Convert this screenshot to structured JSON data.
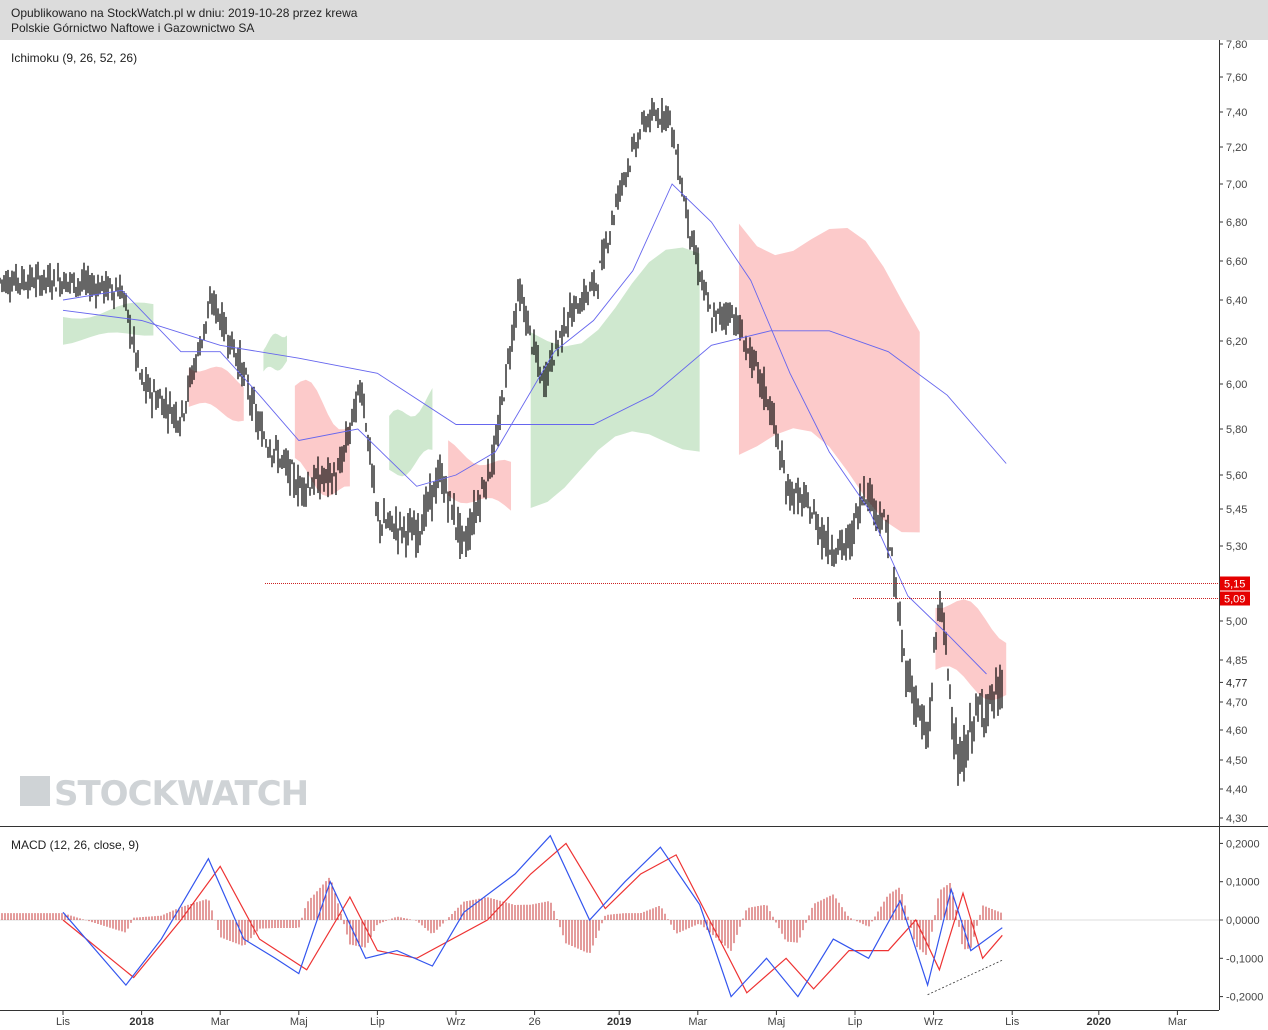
{
  "header": {
    "line1": "Opublikowano na StockWatch.pl w dniu: 2019-10-28 przez krewa",
    "line2": "Polskie Górnictwo Naftowe i Gazownictwo SA"
  },
  "watermark": "STOCKWATCH",
  "colors": {
    "candle": "#000000",
    "kumo_bull": "#cfe8cf",
    "kumo_bear": "#fccaca",
    "ma_line": "#6666ee",
    "macd_line": "#3355ee",
    "signal_line": "#ee3333",
    "histogram": "#c83a3a",
    "level_line": "#cc2222",
    "level_label_bg": "#e50000"
  },
  "chart_data": [
    {
      "type": "candlestick",
      "indicator_label": "Ichimoku (9, 26, 52, 26)",
      "y_ticks": [
        "7,80",
        "7,60",
        "7,40",
        "7,20",
        "7,00",
        "6,80",
        "6,60",
        "6,40",
        "6,20",
        "6,00",
        "5,80",
        "5,60",
        "5,45",
        "5,30",
        "5,00",
        "4,85",
        "4,70",
        "4,60",
        "4,50",
        "4,40",
        "4,30"
      ],
      "y_tick_values": [
        7.8,
        7.6,
        7.4,
        7.2,
        7.0,
        6.8,
        6.6,
        6.4,
        6.2,
        6.0,
        5.8,
        5.6,
        5.45,
        5.3,
        5.0,
        4.85,
        4.7,
        4.6,
        4.5,
        4.4,
        4.3
      ],
      "ylim": [
        4.3,
        7.8
      ],
      "x_ticks": [
        "Lis",
        "2018",
        "Mar",
        "Maj",
        "Lip",
        "Wrz",
        "26",
        "2019",
        "Mar",
        "Maj",
        "Lip",
        "Wrz",
        "Lis",
        "2020",
        "Mar"
      ],
      "x_tick_months": [
        0,
        2,
        4,
        6,
        8,
        10,
        12,
        14,
        16,
        18,
        20,
        22,
        24,
        26,
        28
      ],
      "price_path": [
        [
          0,
          6.5
        ],
        [
          1.5,
          6.45
        ],
        [
          2,
          6.0
        ],
        [
          3,
          5.85
        ],
        [
          3.8,
          6.4
        ],
        [
          4.5,
          6.1
        ],
        [
          5,
          5.8
        ],
        [
          6,
          5.55
        ],
        [
          7,
          5.6
        ],
        [
          7.6,
          6.0
        ],
        [
          8,
          5.4
        ],
        [
          9,
          5.35
        ],
        [
          9.6,
          5.6
        ],
        [
          10.2,
          5.3
        ],
        [
          11,
          5.7
        ],
        [
          11.6,
          6.45
        ],
        [
          12.2,
          6.0
        ],
        [
          12.8,
          6.3
        ],
        [
          13.6,
          6.5
        ],
        [
          14.2,
          7.0
        ],
        [
          14.8,
          7.35
        ],
        [
          15.4,
          7.4
        ],
        [
          16,
          6.7
        ],
        [
          16.5,
          6.3
        ],
        [
          17,
          6.35
        ],
        [
          18,
          5.9
        ],
        [
          18.4,
          5.55
        ],
        [
          19,
          5.45
        ],
        [
          19.5,
          5.3
        ],
        [
          20.0,
          5.3
        ],
        [
          20.4,
          5.55
        ],
        [
          21,
          5.35
        ],
        [
          21.4,
          4.85
        ],
        [
          22,
          4.55
        ],
        [
          22.3,
          5.1
        ],
        [
          22.8,
          4.45
        ],
        [
          23.2,
          4.65
        ],
        [
          23.9,
          4.74
        ]
      ],
      "last_close": 4.77,
      "levels": [
        {
          "label": "5,15",
          "value": 5.15
        },
        {
          "label": "5,09",
          "value": 5.09
        }
      ],
      "current_label": "4,77",
      "long_ma": [
        [
          0,
          6.35
        ],
        [
          2,
          6.3
        ],
        [
          4,
          6.18
        ],
        [
          6,
          6.12
        ],
        [
          8,
          6.05
        ],
        [
          10,
          5.82
        ],
        [
          12,
          5.82
        ],
        [
          13.5,
          5.82
        ],
        [
          15,
          5.95
        ],
        [
          16.5,
          6.18
        ],
        [
          18,
          6.25
        ],
        [
          19.5,
          6.25
        ],
        [
          21,
          6.15
        ],
        [
          22.5,
          5.95
        ],
        [
          24,
          5.65
        ]
      ],
      "mid_ma": [
        [
          0,
          6.4
        ],
        [
          1.5,
          6.45
        ],
        [
          3,
          6.15
        ],
        [
          4,
          6.15
        ],
        [
          5,
          5.95
        ],
        [
          6,
          5.75
        ],
        [
          7.5,
          5.8
        ],
        [
          9,
          5.55
        ],
        [
          10,
          5.6
        ],
        [
          11,
          5.7
        ],
        [
          12.5,
          6.15
        ],
        [
          13.5,
          6.3
        ],
        [
          14.5,
          6.55
        ],
        [
          15.5,
          7.0
        ],
        [
          16.5,
          6.8
        ],
        [
          17.5,
          6.5
        ],
        [
          18.5,
          6.05
        ],
        [
          19.5,
          5.7
        ],
        [
          20.5,
          5.45
        ],
        [
          21.5,
          5.1
        ],
        [
          22.5,
          4.95
        ],
        [
          23.5,
          4.8
        ]
      ],
      "kumo": [
        {
          "kind": "bull",
          "x": [
            0,
            2.3
          ],
          "top": 6.38,
          "bottom": 6.2
        },
        {
          "kind": "bear",
          "x": [
            3.2,
            4.6
          ],
          "top": 6.1,
          "bottom": 5.85
        },
        {
          "kind": "bull",
          "x": [
            5.1,
            5.7
          ],
          "top": 6.25,
          "bottom": 6.05
        },
        {
          "kind": "bear",
          "x": [
            5.9,
            7.3
          ],
          "top": 6.0,
          "bottom": 5.5
        },
        {
          "kind": "bull",
          "x": [
            8.3,
            9.4
          ],
          "top": 5.95,
          "bottom": 5.6
        },
        {
          "kind": "bear",
          "x": [
            9.8,
            11.4
          ],
          "top": 5.72,
          "bottom": 5.45
        },
        {
          "kind": "bull",
          "x": [
            11.9,
            16.2
          ],
          "top": 6.6,
          "bottom": 5.55
        },
        {
          "kind": "bear",
          "x": [
            17.2,
            21.8
          ],
          "top": 6.92,
          "bottom": 5.45
        },
        {
          "kind": "bear",
          "x": [
            22.2,
            24.0
          ],
          "top": 5.1,
          "bottom": 4.72
        }
      ]
    },
    {
      "type": "macd",
      "indicator_label": "MACD (12, 26, close, 9)",
      "y_ticks": [
        "0,2000",
        "0,1000",
        "0,0000",
        "-0,1000",
        "-0,2000"
      ],
      "y_tick_values": [
        0.2,
        0.1,
        0.0,
        -0.1,
        -0.2
      ],
      "ylim": [
        -0.22,
        0.22
      ],
      "macd": [
        [
          0,
          0.02
        ],
        [
          1.6,
          -0.17
        ],
        [
          2.5,
          -0.05
        ],
        [
          3.7,
          0.16
        ],
        [
          4.6,
          -0.05
        ],
        [
          5.4,
          -0.1
        ],
        [
          6.0,
          -0.14
        ],
        [
          6.8,
          0.1
        ],
        [
          7.7,
          -0.1
        ],
        [
          8.5,
          -0.08
        ],
        [
          9.4,
          -0.12
        ],
        [
          10.2,
          0.02
        ],
        [
          11.5,
          0.12
        ],
        [
          12.4,
          0.22
        ],
        [
          13.4,
          0.0
        ],
        [
          14.3,
          0.1
        ],
        [
          15.2,
          0.19
        ],
        [
          16.2,
          0.04
        ],
        [
          17.0,
          -0.2
        ],
        [
          17.9,
          -0.1
        ],
        [
          18.7,
          -0.2
        ],
        [
          19.6,
          -0.05
        ],
        [
          20.5,
          -0.1
        ],
        [
          21.3,
          0.05
        ],
        [
          22.0,
          -0.17
        ],
        [
          22.6,
          0.08
        ],
        [
          23.1,
          -0.08
        ],
        [
          23.9,
          -0.02
        ]
      ],
      "signal": [
        [
          0,
          0.0
        ],
        [
          1.8,
          -0.15
        ],
        [
          3.0,
          0.0
        ],
        [
          4.0,
          0.14
        ],
        [
          5.0,
          -0.05
        ],
        [
          6.2,
          -0.13
        ],
        [
          7.3,
          0.06
        ],
        [
          8.0,
          -0.08
        ],
        [
          9.0,
          -0.1
        ],
        [
          10.8,
          0.0
        ],
        [
          11.9,
          0.12
        ],
        [
          12.8,
          0.2
        ],
        [
          13.8,
          0.03
        ],
        [
          14.7,
          0.12
        ],
        [
          15.6,
          0.17
        ],
        [
          16.6,
          -0.03
        ],
        [
          17.4,
          -0.19
        ],
        [
          18.4,
          -0.1
        ],
        [
          19.1,
          -0.18
        ],
        [
          20.0,
          -0.08
        ],
        [
          21.0,
          -0.08
        ],
        [
          21.7,
          0.0
        ],
        [
          22.3,
          -0.13
        ],
        [
          22.9,
          0.07
        ],
        [
          23.4,
          -0.1
        ],
        [
          23.9,
          -0.04
        ]
      ],
      "divergence": [
        [
          22.0,
          -0.195
        ],
        [
          23.9,
          -0.105
        ]
      ]
    }
  ]
}
